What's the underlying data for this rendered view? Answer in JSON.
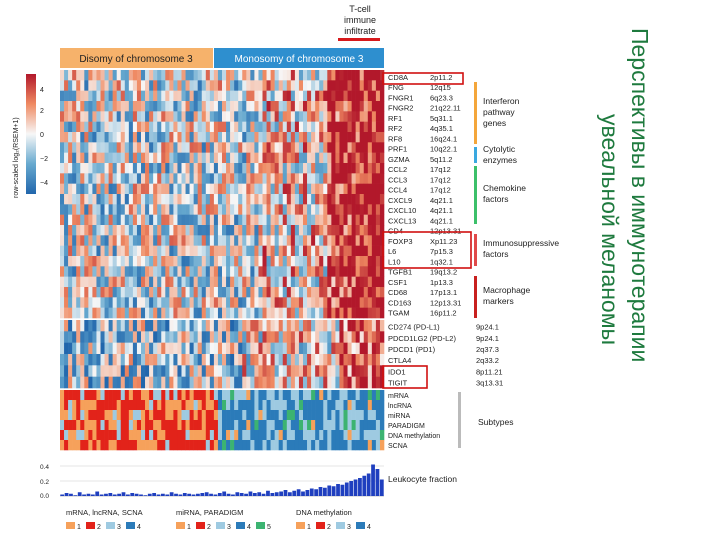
{
  "figure": {
    "top_label": [
      "T-cell",
      "immune",
      "infiltrate"
    ],
    "groups": {
      "disomy": "Disomy of chromosome 3",
      "monosomy": "Monosomy of chromosome 3"
    },
    "colorbar": {
      "ylabel": "row-scaled log₂(RSEM+1)",
      "ticks": [
        "4",
        "2",
        "0",
        "−2",
        "−4"
      ]
    },
    "gene_block_1": [
      {
        "gene": "CD8A",
        "loc": "2p11.2"
      },
      {
        "gene": "FNG",
        "loc": "12q15"
      },
      {
        "gene": "FNGR1",
        "loc": "6q23.3"
      },
      {
        "gene": "FNGR2",
        "loc": "21q22.11"
      },
      {
        "gene": "RF1",
        "loc": "5q31.1"
      },
      {
        "gene": "RF2",
        "loc": "4q35.1"
      },
      {
        "gene": "RF8",
        "loc": "16q24.1"
      },
      {
        "gene": "PRF1",
        "loc": "10q22.1"
      },
      {
        "gene": "GZMA",
        "loc": "5q11.2"
      },
      {
        "gene": "CCL2",
        "loc": "17q12"
      },
      {
        "gene": "CCL3",
        "loc": "17q12"
      },
      {
        "gene": "CCL4",
        "loc": "17q12"
      },
      {
        "gene": "CXCL9",
        "loc": "4q21.1"
      },
      {
        "gene": "CXCL10",
        "loc": "4q21.1"
      },
      {
        "gene": "CXCL13",
        "loc": "4q21.1"
      },
      {
        "gene": "CD4",
        "loc": "12p13.31"
      },
      {
        "gene": "FOXP3",
        "loc": "Xp11.23"
      },
      {
        "gene": "L6",
        "loc": "7p15.3"
      },
      {
        "gene": "L10",
        "loc": "1q32.1"
      },
      {
        "gene": "TGFB1",
        "loc": "19q13.2"
      },
      {
        "gene": "CSF1",
        "loc": "1p13.3"
      },
      {
        "gene": "CD68",
        "loc": "17p13.1"
      },
      {
        "gene": "CD163",
        "loc": "12p13.31"
      },
      {
        "gene": "TGAM",
        "loc": "16p11.2"
      }
    ],
    "gene_block_2": [
      {
        "gene": "CD274 (PD-L1)",
        "loc": "9p24.1"
      },
      {
        "gene": "PDCD1LG2 (PD-L2)",
        "loc": "9p24.1"
      },
      {
        "gene": "PDCD1 (PD1)",
        "loc": "2q37.3"
      },
      {
        "gene": "CTLA4",
        "loc": "2q33.2"
      },
      {
        "gene": "IDO1",
        "loc": "8p11.21"
      },
      {
        "gene": "TIGIT",
        "loc": "3q13.31"
      }
    ],
    "gene_groups": [
      {
        "label": [
          "Interferon",
          "pathway",
          "genes"
        ],
        "color": "#f4a63b"
      },
      {
        "label": [
          "Cytolytic",
          "enzymes"
        ],
        "color": "#3aa8e0"
      },
      {
        "label": [
          "Chemokine",
          "factors"
        ],
        "color": "#3cc06a"
      },
      {
        "label": [
          "Immunosuppressive",
          "factors"
        ],
        "color": "#e04a4a"
      },
      {
        "label": [
          "Macrophage",
          "markers"
        ],
        "color": "#c8201f"
      }
    ],
    "subtype_rows": [
      "mRNA",
      "lncRNA",
      "miRNA",
      "PARADIGM",
      "DNA methylation",
      "SCNA"
    ],
    "subtypes_label": "Subtypes",
    "leukocyte": {
      "label": "Leukocyte fraction",
      "ticks": [
        "0.4",
        "0.2",
        "0.0"
      ],
      "values": [
        0.02,
        0.04,
        0.03,
        0.01,
        0.05,
        0.02,
        0.03,
        0.02,
        0.06,
        0.02,
        0.03,
        0.04,
        0.02,
        0.03,
        0.05,
        0.02,
        0.04,
        0.03,
        0.02,
        0.01,
        0.03,
        0.04,
        0.02,
        0.03,
        0.02,
        0.05,
        0.03,
        0.02,
        0.04,
        0.03,
        0.02,
        0.03,
        0.04,
        0.05,
        0.03,
        0.02,
        0.04,
        0.06,
        0.03,
        0.02,
        0.05,
        0.04,
        0.03,
        0.06,
        0.04,
        0.05,
        0.03,
        0.07,
        0.04,
        0.05,
        0.06,
        0.08,
        0.05,
        0.07,
        0.09,
        0.06,
        0.08,
        0.1,
        0.09,
        0.12,
        0.11,
        0.14,
        0.13,
        0.16,
        0.15,
        0.18,
        0.2,
        0.22,
        0.24,
        0.27,
        0.3,
        0.42,
        0.36,
        0.22
      ]
    },
    "legends": {
      "set1": {
        "title": "mRNA, lncRNA, SCNA",
        "items": [
          "1",
          "2",
          "3",
          "4"
        ],
        "colors": [
          "#f6a15b",
          "#e2231a",
          "#9ecae1",
          "#2b7bb9"
        ]
      },
      "set2": {
        "title": "miRNA, PARADIGM",
        "items": [
          "1",
          "2",
          "3",
          "4",
          "5"
        ],
        "colors": [
          "#f6a15b",
          "#e2231a",
          "#9ecae1",
          "#2b7bb9",
          "#3cb371"
        ]
      },
      "set3": {
        "title": "DNA methylation",
        "items": [
          "1",
          "2",
          "3",
          "4"
        ],
        "colors": [
          "#f6a15b",
          "#e2231a",
          "#9ecae1",
          "#2b7bb9"
        ]
      }
    },
    "accents": {
      "disomy": "#f6b26b",
      "monosomy": "#2e8fcf",
      "red": "#d7191c",
      "highlight": "#d01010"
    }
  },
  "slide_title": [
    "Перспективы в иммунотерапии",
    "увеальной меланомы"
  ]
}
